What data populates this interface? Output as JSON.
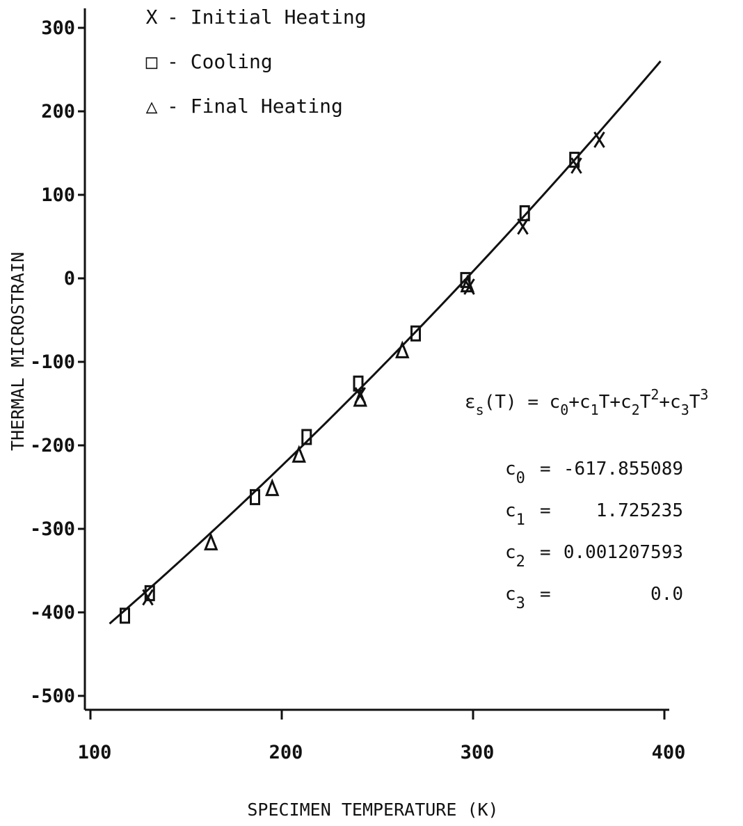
{
  "chart_data": {
    "type": "scatter",
    "xlabel": "SPECIMEN TEMPERATURE (K)",
    "ylabel": "THERMAL MICROSTRAIN",
    "xlim": [
      100,
      400
    ],
    "ylim": [
      -500,
      300
    ],
    "x_ticks": [
      "100",
      "200",
      "300",
      "400"
    ],
    "y_ticks": [
      "300",
      "200",
      "100",
      "0",
      "-100",
      "-200",
      "-300",
      "-400",
      "-500"
    ],
    "colors": {
      "ink": "#111111",
      "background": "#ffffff"
    },
    "legend_placement": "top-left",
    "legend": [
      {
        "symbol": "X",
        "label": "- Initial Heating"
      },
      {
        "symbol": "□",
        "label": "- Cooling"
      },
      {
        "symbol": "△",
        "label": "- Final Heating"
      }
    ],
    "series": [
      {
        "name": "Initial Heating",
        "marker": "x",
        "points": [
          [
            130,
            -382
          ],
          [
            241,
            -140
          ],
          [
            298,
            -10
          ],
          [
            326,
            62
          ],
          [
            354,
            135
          ],
          [
            366,
            166
          ]
        ]
      },
      {
        "name": "Cooling",
        "marker": "square",
        "points": [
          [
            118,
            -404
          ],
          [
            131,
            -377
          ],
          [
            186,
            -262
          ],
          [
            213,
            -190
          ],
          [
            240,
            -126
          ],
          [
            270,
            -66
          ],
          [
            296,
            -2
          ],
          [
            327,
            78
          ],
          [
            353,
            142
          ]
        ]
      },
      {
        "name": "Final Heating",
        "marker": "triangle",
        "points": [
          [
            163,
            -317
          ],
          [
            195,
            -252
          ],
          [
            209,
            -212
          ],
          [
            241,
            -145
          ],
          [
            263,
            -87
          ],
          [
            297,
            -8
          ]
        ]
      }
    ],
    "fit_line": {
      "x_start": 110,
      "x_end": 398
    },
    "equation": {
      "lhs": "ε",
      "lhs_sub": "s",
      "lhs_rest": "(T) = ",
      "rhs": "c0+c1T+c2T2+c3T3",
      "coefficients": [
        {
          "name": "c",
          "sub": "0",
          "value": "-617.855089"
        },
        {
          "name": "c",
          "sub": "1",
          "value": "1.725235"
        },
        {
          "name": "c",
          "sub": "2",
          "value": "0.001207593"
        },
        {
          "name": "c",
          "sub": "3",
          "value": "0.0"
        }
      ]
    }
  }
}
